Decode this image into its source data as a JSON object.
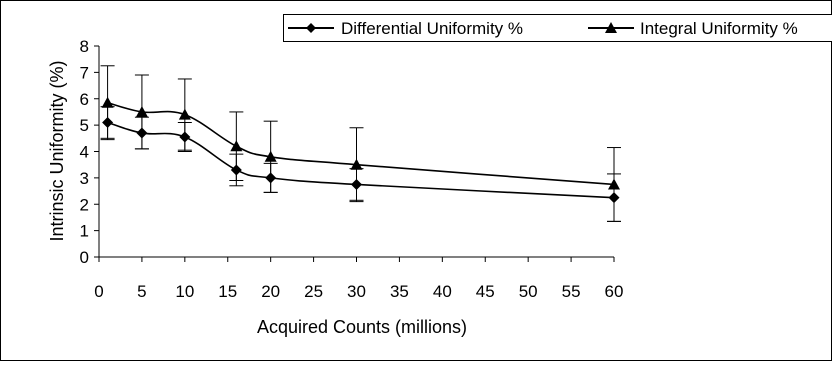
{
  "chart_data": {
    "type": "line",
    "xlabel": "Acquired Counts (millions)",
    "ylabel": "Intrinsic Uniformity (%)",
    "xlim": [
      0,
      60
    ],
    "ylim": [
      0,
      8
    ],
    "x_ticks": [
      0,
      5,
      10,
      15,
      20,
      25,
      30,
      35,
      40,
      45,
      50,
      55,
      60
    ],
    "y_ticks": [
      0,
      1,
      2,
      3,
      4,
      5,
      6,
      7,
      8
    ],
    "x": [
      1,
      5,
      10,
      16,
      20,
      30,
      60
    ],
    "grid": false,
    "smooth": true,
    "legend_position": "top",
    "series": [
      {
        "name": "Differential Uniformity %",
        "marker": "diamond",
        "color": "#000000",
        "values": [
          5.1,
          4.7,
          4.55,
          3.3,
          3.0,
          2.75,
          2.25
        ],
        "error": [
          0.6,
          0.6,
          0.55,
          0.6,
          0.55,
          0.6,
          0.9
        ]
      },
      {
        "name": "Integral Uniformity %",
        "marker": "triangle",
        "color": "#000000",
        "values": [
          5.85,
          5.5,
          5.4,
          4.2,
          3.8,
          3.5,
          2.75
        ],
        "error": [
          1.4,
          1.4,
          1.35,
          1.3,
          1.35,
          1.4,
          1.4
        ]
      }
    ]
  }
}
